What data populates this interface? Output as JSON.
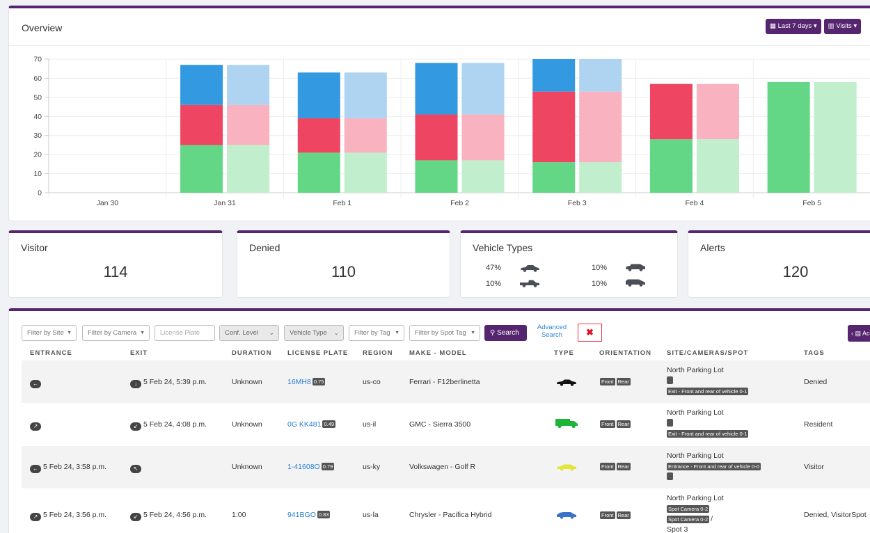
{
  "overview": {
    "title": "Overview",
    "range_button": "Last 7 days",
    "metric_button": "Visits"
  },
  "chart_data": {
    "type": "bar",
    "stacked": true,
    "categories": [
      "Jan 30",
      "Jan 31",
      "Feb 1",
      "Feb 2",
      "Feb 3",
      "Feb 4",
      "Feb 5"
    ],
    "ylim": [
      0,
      70
    ],
    "yticks": [
      0,
      10,
      20,
      30,
      40,
      50,
      60,
      70
    ],
    "grid": true,
    "colors": {
      "green": "#63d785",
      "red": "#ee4563",
      "blue": "#3399e1",
      "green_light": "#c1eecc",
      "red_light": "#f9b3c0",
      "blue_light": "#aed4f2"
    },
    "groups": [
      {
        "category": "Jan 30",
        "bars": []
      },
      {
        "category": "Jan 31",
        "bars": [
          {
            "green": 25,
            "red": 21,
            "blue": 21
          },
          {
            "green": 25,
            "red": 21,
            "blue": 21,
            "light": true
          }
        ]
      },
      {
        "category": "Feb 1",
        "bars": [
          {
            "green": 21,
            "red": 18,
            "blue": 24
          },
          {
            "green": 21,
            "red": 18,
            "blue": 24,
            "light": true
          }
        ]
      },
      {
        "category": "Feb 2",
        "bars": [
          {
            "green": 17,
            "red": 24,
            "blue": 27
          },
          {
            "green": 17,
            "red": 24,
            "blue": 27,
            "light": true
          }
        ]
      },
      {
        "category": "Feb 3",
        "bars": [
          {
            "green": 16,
            "red": 37,
            "blue": 17
          },
          {
            "green": 16,
            "red": 37,
            "blue": 17,
            "light": true
          }
        ]
      },
      {
        "category": "Feb 4",
        "bars": [
          {
            "green": 28,
            "red": 29,
            "blue": 0
          },
          {
            "green": 28,
            "red": 29,
            "blue": 0,
            "light": true
          }
        ]
      },
      {
        "category": "Feb 5",
        "bars": [
          {
            "green": 58,
            "red": 0,
            "blue": 0
          },
          {
            "green": 58,
            "red": 0,
            "blue": 0,
            "light": true
          }
        ]
      }
    ]
  },
  "stats": {
    "visitor": {
      "title": "Visitor",
      "value": "114"
    },
    "denied": {
      "title": "Denied",
      "value": "110"
    },
    "vehicle_types": {
      "title": "Vehicle Types",
      "items": [
        {
          "pct": "47%",
          "icon": "sedan-icon"
        },
        {
          "pct": "10%",
          "icon": "suv-icon"
        },
        {
          "pct": "10%",
          "icon": "pickup-icon"
        },
        {
          "pct": "10%",
          "icon": "van-icon"
        }
      ]
    },
    "alerts": {
      "title": "Alerts",
      "value": "120"
    }
  },
  "filters": {
    "site": "Filter by Site",
    "camera": "Filter by Camera",
    "plate_placeholder": "License Plate",
    "conf_level": "Conf. Level",
    "vehicle_type": "Vehicle Type",
    "tag": "Filter by Tag",
    "spot_tag": "Filter by Spot Tag",
    "search": "Search",
    "advanced": "Advanced Search",
    "clear": "✖",
    "right_button": "Ac"
  },
  "table": {
    "headers": {
      "entrance": "ENTRANCE",
      "exit": "EXIT",
      "duration": "DURATION",
      "plate": "LICENSE PLATE",
      "region": "REGION",
      "make_model": "MAKE - MODEL",
      "type": "TYPE",
      "orientation": "ORIENTATION",
      "site": "SITE/CAMERAS/SPOT",
      "tags": "TAGS"
    },
    "rows": [
      {
        "entrance": "",
        "exit": "5 Feb 24, 5:39 p.m.",
        "duration": "Unknown",
        "plate": "16MH8",
        "conf": "0.75",
        "region": "us-co",
        "make_model": "Ferrari - F12berlinetta",
        "vehicle_color": "#111111",
        "orientation": [
          "Front",
          "Rear"
        ],
        "site_name": "North Parking Lot",
        "camera_badge": "Exit - Front and rear of vehicle 0-1",
        "tags": "Denied"
      },
      {
        "entrance": "",
        "exit": "5 Feb 24, 4:08 p.m.",
        "duration": "Unknown",
        "plate": "0G KK481",
        "conf": "0.49",
        "region": "us-il",
        "make_model": "GMC - Sierra 3500",
        "vehicle_color": "#1eb43a",
        "orientation": [
          "Front",
          "Rear"
        ],
        "site_name": "North Parking Lot",
        "camera_badge": "Exit - Front and rear of vehicle 0-1",
        "tags": "Resident"
      },
      {
        "entrance": "5 Feb 24, 3:58 p.m.",
        "exit": "",
        "duration": "Unknown",
        "plate": "1-41608O",
        "conf": "0.79",
        "region": "us-ky",
        "make_model": "Volkswagen - Golf R",
        "vehicle_color": "#e4e43a",
        "orientation": [
          "Front",
          "Rear"
        ],
        "site_name": "North Parking Lot",
        "camera_badge": "Entrance - Front and rear of vehicle 0-0",
        "tags": "Visitor"
      },
      {
        "entrance": "5 Feb 24, 3:56 p.m.",
        "exit": "5 Feb 24, 4:56 p.m.",
        "duration": "1:00",
        "plate": "941BGO",
        "conf": "0.83",
        "region": "us-la",
        "make_model": "Chrysler - Pacifica Hybrid",
        "vehicle_color": "#3b73c6",
        "orientation": [
          "Front",
          "Rear"
        ],
        "site_name": "North Parking Lot",
        "spot_badge_1": "Spot Camera 0-2",
        "spot_badge_2": "Spot Camera 0-2",
        "spot_sep": "/",
        "spot_name": "Spot 3",
        "tags": "Denied, VisitorSpot"
      }
    ]
  }
}
